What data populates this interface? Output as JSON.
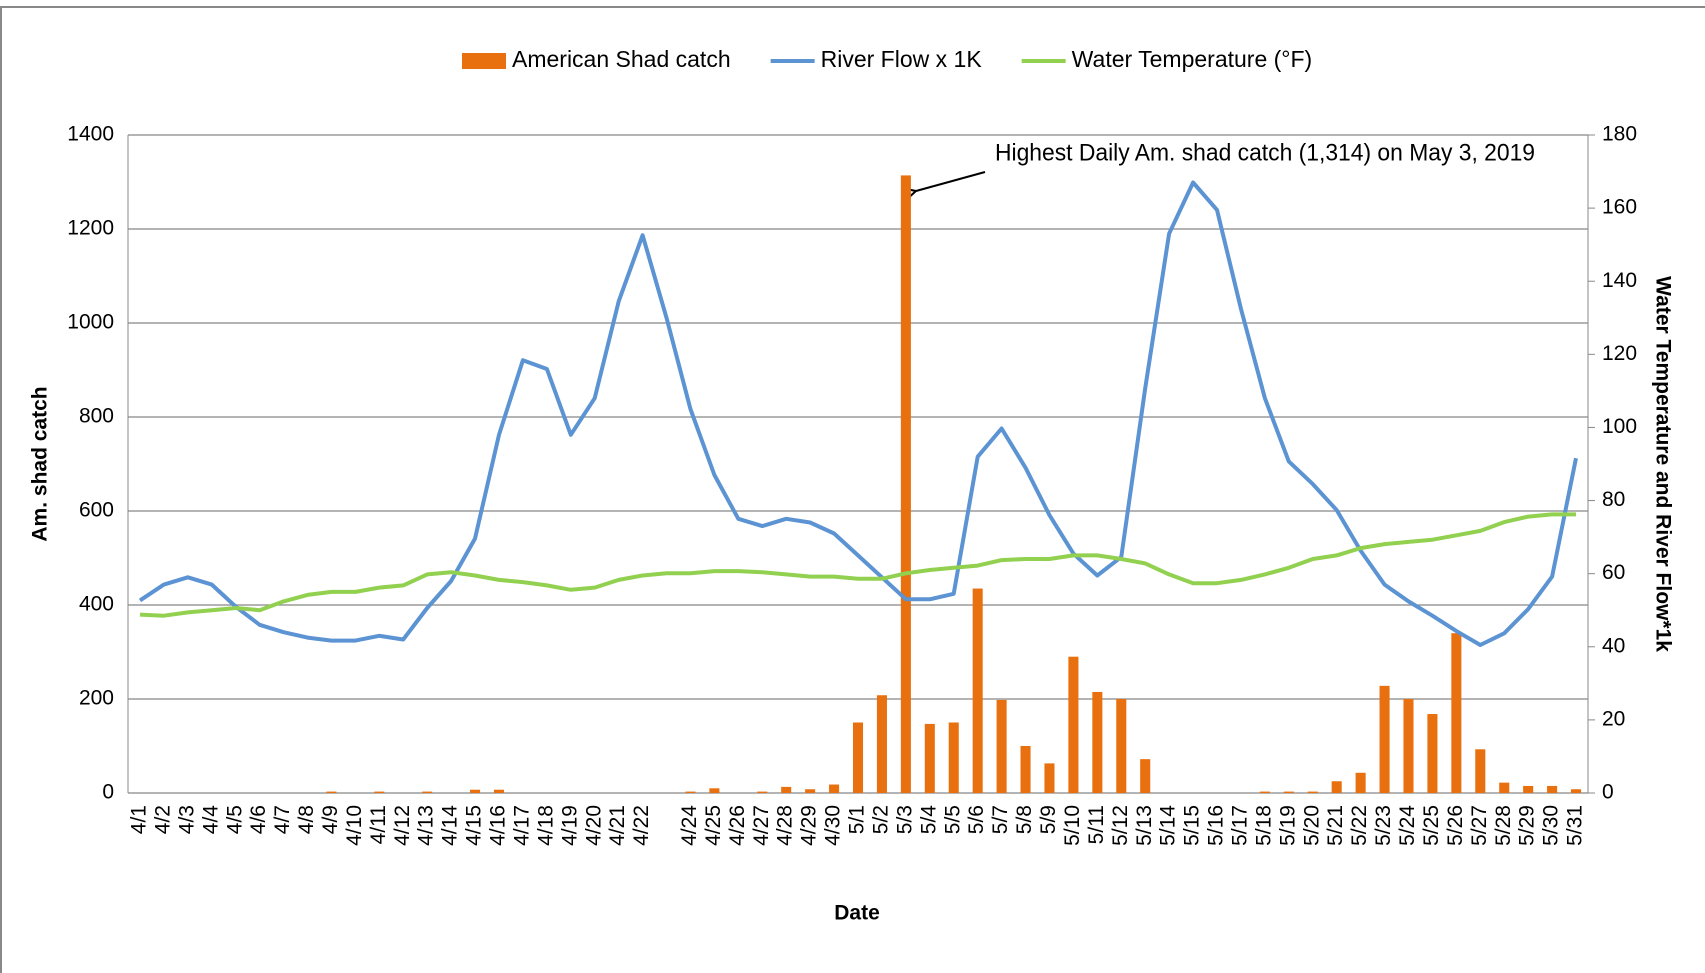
{
  "chart_data": {
    "type": "bar",
    "annotation": "Highest Daily Am. shad catch (1,314) on May 3, 2019",
    "xlabel": "Date",
    "ylabel": "Am. shad catch",
    "y2label": "Water Temperature and River Flow*1k",
    "categories": [
      "4/1",
      "4/2",
      "4/3",
      "4/4",
      "4/5",
      "4/6",
      "4/7",
      "4/8",
      "4/9",
      "4/10",
      "4/11",
      "4/12",
      "4/13",
      "4/14",
      "4/15",
      "4/16",
      "4/17",
      "4/18",
      "4/19",
      "4/20",
      "4/21",
      "4/22",
      null,
      "4/24",
      "4/25",
      "4/26",
      "4/27",
      "4/28",
      "4/29",
      "4/30",
      "5/1",
      "5/2",
      "5/3",
      "5/4",
      "5/5",
      "5/6",
      "5/7",
      "5/8",
      "5/9",
      "5/10",
      "5/11",
      "5/12",
      "5/13",
      "5/14",
      "5/15",
      "5/16",
      "5/17",
      "5/18",
      "5/19",
      "5/20",
      "5/21",
      "5/22",
      "5/23",
      "5/24",
      "5/25",
      "5/26",
      "5/27",
      "5/28",
      "5/29",
      "5/30",
      "5/31"
    ],
    "series": [
      {
        "name": "American Shad catch",
        "type": "bar",
        "axis": "y",
        "color": "#e8700e",
        "values": [
          0,
          0,
          0,
          0,
          0,
          0,
          0,
          0,
          3,
          0,
          3,
          0,
          3,
          0,
          7,
          7,
          0,
          0,
          0,
          0,
          0,
          0,
          0,
          3,
          10,
          0,
          3,
          13,
          8,
          18,
          150,
          208,
          1314,
          147,
          150,
          435,
          198,
          100,
          63,
          290,
          215,
          200,
          72,
          0,
          0,
          0,
          0,
          3,
          3,
          3,
          25,
          43,
          228,
          200,
          168,
          340,
          93,
          22,
          15,
          15,
          8
        ]
      },
      {
        "name": "River Flow x 1K",
        "type": "line",
        "axis": "y2",
        "color": "#5b93d3",
        "values": [
          52.7,
          57,
          59,
          57,
          51,
          46,
          44,
          42.5,
          41.7,
          41.7,
          43,
          42,
          50.6,
          58,
          69.6,
          98,
          118.4,
          116,
          98,
          108,
          134.5,
          152.6,
          130,
          105,
          87,
          75,
          73,
          75,
          74,
          71,
          65,
          59,
          53,
          53,
          54.5,
          92,
          99.7,
          89,
          76,
          65.5,
          59.5,
          64.6,
          110.7,
          153,
          167,
          159.5,
          132.4,
          108,
          90.7,
          84.5,
          77.4,
          66.3,
          57,
          52.4,
          48.5,
          44.3,
          40.5,
          43.7,
          50.3,
          59.2,
          91.6
        ]
      },
      {
        "name": "Water Temperature (°F)",
        "type": "line",
        "axis": "y2",
        "color": "#92d050",
        "values": [
          48.8,
          48.5,
          49.4,
          50,
          50.6,
          50,
          52.4,
          54.2,
          55,
          55,
          56.2,
          56.8,
          59.8,
          60.4,
          59.5,
          58.3,
          57.7,
          56.8,
          55.6,
          56.2,
          58.3,
          59.5,
          60.1,
          60.1,
          60.7,
          60.7,
          60.4,
          59.8,
          59.2,
          59.2,
          58.6,
          58.6,
          60.1,
          61,
          61.6,
          62.2,
          63.7,
          64,
          64,
          65,
          65,
          64,
          62.8,
          59.8,
          57.4,
          57.4,
          58.3,
          59.8,
          61.6,
          64,
          65,
          67,
          68.1,
          68.7,
          69.3,
          70.5,
          71.7,
          74.1,
          75.6,
          76.2,
          76.2
        ]
      }
    ],
    "ylim": [
      0,
      1400
    ],
    "yticks": [
      0,
      200,
      400,
      600,
      800,
      1000,
      1200,
      1400
    ],
    "y2lim": [
      0,
      180
    ],
    "y2ticks": [
      0,
      20,
      40,
      60,
      80,
      100,
      120,
      140,
      160,
      180
    ],
    "grid": true,
    "legend": "top"
  }
}
